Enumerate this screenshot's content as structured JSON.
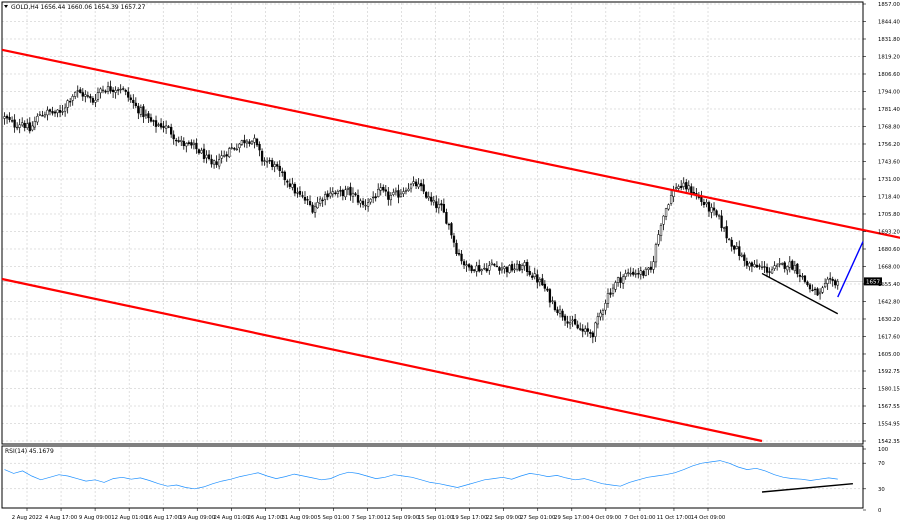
{
  "chart_data": [
    {
      "type": "candlestick",
      "header": {
        "symbol_line": "GOLD,H4  1656.44 1660.06 1654.39 1657.27"
      },
      "ylim": [
        1542.35,
        1857.0
      ],
      "y_ticks": [
        {
          "value": 1857.0,
          "label": "1857.00"
        },
        {
          "value": 1844.4,
          "label": "1844.40"
        },
        {
          "value": 1831.8,
          "label": "1831.80"
        },
        {
          "value": 1819.2,
          "label": "1819.20"
        },
        {
          "value": 1806.6,
          "label": "1806.60"
        },
        {
          "value": 1794.0,
          "label": "1794.00"
        },
        {
          "value": 1781.4,
          "label": "1781.40"
        },
        {
          "value": 1768.8,
          "label": "1768.80"
        },
        {
          "value": 1756.2,
          "label": "1756.20"
        },
        {
          "value": 1743.6,
          "label": "1743.60"
        },
        {
          "value": 1731.0,
          "label": "1731.00"
        },
        {
          "value": 1718.4,
          "label": "1718.40"
        },
        {
          "value": 1705.8,
          "label": "1705.80"
        },
        {
          "value": 1693.2,
          "label": "1693.20"
        },
        {
          "value": 1680.6,
          "label": "1680.60"
        },
        {
          "value": 1668.0,
          "label": "1668.00"
        },
        {
          "value": 1655.4,
          "label": "1655.40"
        },
        {
          "value": 1642.8,
          "label": "1642.80"
        },
        {
          "value": 1630.2,
          "label": "1630.20"
        },
        {
          "value": 1617.6,
          "label": "1617.60"
        },
        {
          "value": 1605.0,
          "label": "1605.00"
        },
        {
          "value": 1592.75,
          "label": "1592.75"
        },
        {
          "value": 1580.15,
          "label": "1580.15"
        },
        {
          "value": 1567.55,
          "label": "1567.55"
        },
        {
          "value": 1554.95,
          "label": "1554.95"
        },
        {
          "value": 1542.35,
          "label": "1542.35"
        }
      ],
      "current_price": {
        "value": 1657.27,
        "label": "1657.27",
        "color": "#000000"
      },
      "x_labels": [
        "2 Aug 2022",
        "4 Aug 17:00",
        "9 Aug 09:00",
        "12 Aug 01:00",
        "16 Aug 17:00",
        "19 Aug 09:00",
        "24 Aug 01:00",
        "26 Aug 17:00",
        "31 Aug 09:00",
        "5 Sep 01:00",
        "7 Sep 17:00",
        "12 Sep 09:00",
        "15 Sep 01:00",
        "19 Sep 17:00",
        "22 Sep 09:00",
        "27 Sep 01:00",
        "29 Sep 17:00",
        "4 Oct 09:00",
        "7 Oct 01:00",
        "11 Oct 17:00",
        "14 Oct 09:00"
      ],
      "price_path": [
        {
          "x": 0,
          "y": 1775
        },
        {
          "x": 4,
          "y": 1770
        },
        {
          "x": 7,
          "y": 1772
        },
        {
          "x": 10,
          "y": 1766
        },
        {
          "x": 14,
          "y": 1778
        },
        {
          "x": 18,
          "y": 1779
        },
        {
          "x": 22,
          "y": 1778
        },
        {
          "x": 25,
          "y": 1787
        },
        {
          "x": 28,
          "y": 1794
        },
        {
          "x": 31,
          "y": 1792
        },
        {
          "x": 35,
          "y": 1787
        },
        {
          "x": 38,
          "y": 1796
        },
        {
          "x": 42,
          "y": 1796
        },
        {
          "x": 46,
          "y": 1797
        },
        {
          "x": 49,
          "y": 1790
        },
        {
          "x": 52,
          "y": 1783
        },
        {
          "x": 56,
          "y": 1776
        },
        {
          "x": 59,
          "y": 1770
        },
        {
          "x": 62,
          "y": 1770
        },
        {
          "x": 65,
          "y": 1767
        },
        {
          "x": 69,
          "y": 1758
        },
        {
          "x": 72,
          "y": 1755
        },
        {
          "x": 75,
          "y": 1754
        },
        {
          "x": 79,
          "y": 1748
        },
        {
          "x": 82,
          "y": 1740
        },
        {
          "x": 86,
          "y": 1747
        },
        {
          "x": 89,
          "y": 1752
        },
        {
          "x": 92,
          "y": 1755
        },
        {
          "x": 96,
          "y": 1760
        },
        {
          "x": 99,
          "y": 1758
        },
        {
          "x": 102,
          "y": 1745
        },
        {
          "x": 106,
          "y": 1742
        },
        {
          "x": 109,
          "y": 1735
        },
        {
          "x": 112,
          "y": 1730
        },
        {
          "x": 116,
          "y": 1720
        },
        {
          "x": 119,
          "y": 1716
        },
        {
          "x": 122,
          "y": 1710
        },
        {
          "x": 126,
          "y": 1718
        },
        {
          "x": 129,
          "y": 1722
        },
        {
          "x": 132,
          "y": 1720
        },
        {
          "x": 136,
          "y": 1722
        },
        {
          "x": 139,
          "y": 1718
        },
        {
          "x": 142,
          "y": 1712
        },
        {
          "x": 146,
          "y": 1718
        },
        {
          "x": 149,
          "y": 1722
        },
        {
          "x": 152,
          "y": 1718
        },
        {
          "x": 156,
          "y": 1720
        },
        {
          "x": 159,
          "y": 1725
        },
        {
          "x": 163,
          "y": 1727
        },
        {
          "x": 166,
          "y": 1722
        },
        {
          "x": 169,
          "y": 1714
        },
        {
          "x": 173,
          "y": 1710
        },
        {
          "x": 176,
          "y": 1698
        },
        {
          "x": 179,
          "y": 1680
        },
        {
          "x": 183,
          "y": 1667
        },
        {
          "x": 186,
          "y": 1668
        },
        {
          "x": 189,
          "y": 1666
        },
        {
          "x": 193,
          "y": 1669
        },
        {
          "x": 196,
          "y": 1668
        },
        {
          "x": 199,
          "y": 1666
        },
        {
          "x": 203,
          "y": 1667
        },
        {
          "x": 206,
          "y": 1668
        },
        {
          "x": 209,
          "y": 1662
        },
        {
          "x": 213,
          "y": 1655
        },
        {
          "x": 216,
          "y": 1645
        },
        {
          "x": 219,
          "y": 1637
        },
        {
          "x": 223,
          "y": 1630
        },
        {
          "x": 226,
          "y": 1625
        },
        {
          "x": 229,
          "y": 1621
        },
        {
          "x": 233,
          "y": 1620
        },
        {
          "x": 236,
          "y": 1634
        },
        {
          "x": 239,
          "y": 1648
        },
        {
          "x": 243,
          "y": 1658
        },
        {
          "x": 246,
          "y": 1662
        },
        {
          "x": 249,
          "y": 1664
        },
        {
          "x": 253,
          "y": 1663
        },
        {
          "x": 256,
          "y": 1665
        },
        {
          "x": 260,
          "y": 1700
        },
        {
          "x": 263,
          "y": 1715
        },
        {
          "x": 266,
          "y": 1726
        },
        {
          "x": 270,
          "y": 1725
        },
        {
          "x": 273,
          "y": 1722
        },
        {
          "x": 276,
          "y": 1715
        },
        {
          "x": 280,
          "y": 1708
        },
        {
          "x": 283,
          "y": 1702
        },
        {
          "x": 286,
          "y": 1690
        },
        {
          "x": 290,
          "y": 1680
        },
        {
          "x": 293,
          "y": 1672
        },
        {
          "x": 296,
          "y": 1668
        },
        {
          "x": 300,
          "y": 1667
        },
        {
          "x": 303,
          "y": 1665
        },
        {
          "x": 306,
          "y": 1667
        },
        {
          "x": 310,
          "y": 1670
        },
        {
          "x": 313,
          "y": 1668
        },
        {
          "x": 316,
          "y": 1660
        },
        {
          "x": 320,
          "y": 1650
        },
        {
          "x": 323,
          "y": 1648
        },
        {
          "x": 326,
          "y": 1656
        },
        {
          "x": 330,
          "y": 1657.27
        }
      ],
      "trend_lines": [
        {
          "name": "channel-upper",
          "color": "#ff0000",
          "points": [
            {
              "x": -1,
              "y": 1824
            },
            {
              "x": 396,
              "y": 1673
            }
          ]
        },
        {
          "name": "channel-lower",
          "color": "#ff0000",
          "points": [
            {
              "x": -1,
              "y": 1659
            },
            {
              "x": 300,
              "y": 1542.35
            }
          ]
        },
        {
          "name": "lower-lows",
          "color": "#000000",
          "points": [
            {
              "x": 300,
              "y": 1663
            },
            {
              "x": 330,
              "y": 1634
            }
          ]
        },
        {
          "name": "projection",
          "color": "#0000ff",
          "points": [
            {
              "x": 330,
              "y": 1646
            },
            {
              "x": 340,
              "y": 1686
            }
          ]
        }
      ]
    },
    {
      "type": "line",
      "label": "RSI(14) 45.1679",
      "ylim": [
        0,
        100
      ],
      "y_ticks": [
        {
          "value": 100,
          "label": "100"
        },
        {
          "value": 70,
          "label": "70"
        },
        {
          "value": 30,
          "label": "30"
        },
        {
          "value": 0,
          "label": "0"
        }
      ],
      "line_color": "#1e90ff",
      "values": [
        60,
        54,
        58,
        50,
        44,
        48,
        52,
        50,
        46,
        42,
        44,
        40,
        46,
        48,
        45,
        47,
        43,
        38,
        34,
        36,
        32,
        30,
        33,
        38,
        42,
        45,
        49,
        52,
        55,
        50,
        46,
        49,
        53,
        50,
        47,
        44,
        46,
        52,
        56,
        54,
        50,
        46,
        48,
        52,
        50,
        48,
        44,
        40,
        38,
        35,
        32,
        36,
        40,
        44,
        46,
        48,
        45,
        50,
        54,
        52,
        49,
        51,
        47,
        44,
        46,
        42,
        38,
        36,
        34,
        40,
        44,
        48,
        50,
        52,
        55,
        60,
        66,
        70,
        72,
        74,
        70,
        64,
        60,
        62,
        58,
        52,
        48,
        46,
        45,
        43,
        45,
        47,
        45.17
      ],
      "trend_lines": [
        {
          "name": "rsi-higher-lows",
          "color": "#000000",
          "points": [
            {
              "x": 300,
              "y": 25
            },
            {
              "x": 336,
              "y": 38
            }
          ]
        }
      ]
    }
  ]
}
